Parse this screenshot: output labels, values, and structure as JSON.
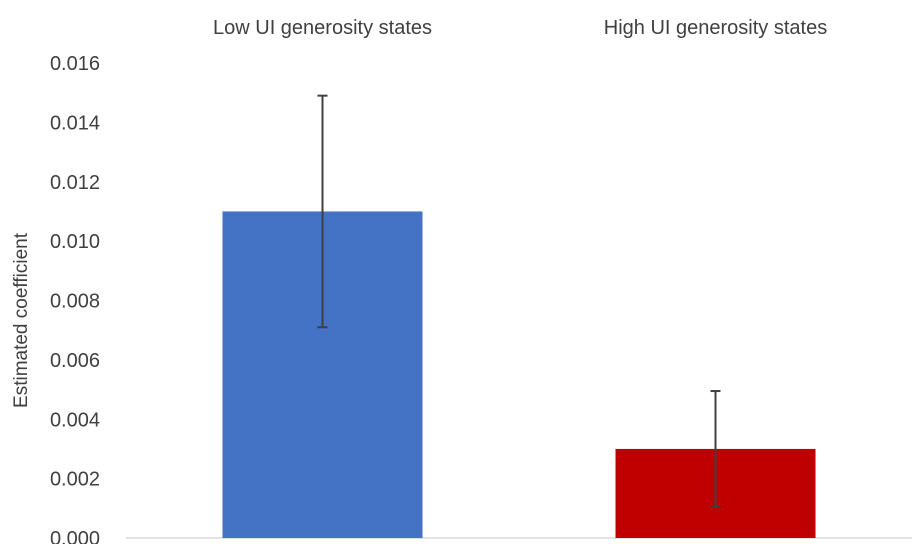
{
  "chart_data": {
    "type": "bar",
    "categories": [
      "Low UI generosity states",
      "High UI generosity states"
    ],
    "values": [
      0.011,
      0.003
    ],
    "error_low": [
      0.0071,
      0.00105
    ],
    "error_high": [
      0.0149,
      0.00495
    ],
    "colors": [
      "#4472C4",
      "#C00000"
    ],
    "ylabel": "Estimated coefficient",
    "ylim": [
      0,
      0.016
    ],
    "yticks": [
      "0.000",
      "0.002",
      "0.004",
      "0.006",
      "0.008",
      "0.010",
      "0.012",
      "0.014",
      "0.016"
    ],
    "category_label_position": "top",
    "grid": false,
    "legend": "none"
  }
}
